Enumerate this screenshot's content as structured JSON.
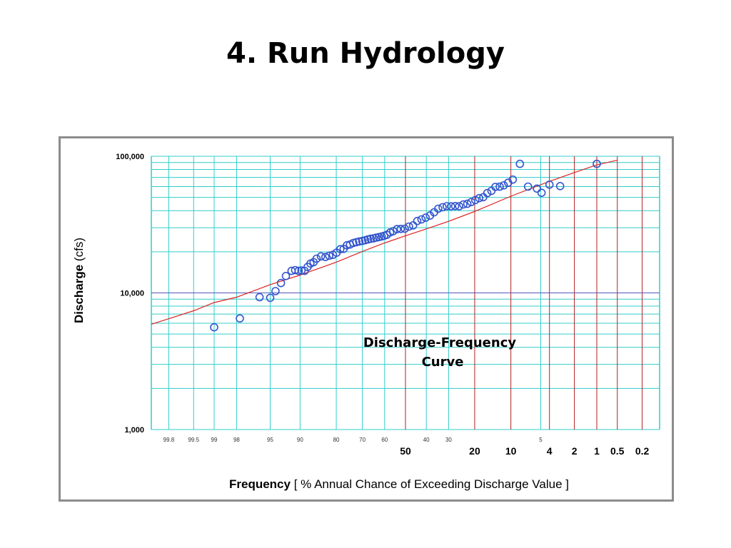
{
  "slide": {
    "title": "4. Run Hydrology"
  },
  "chart_data": {
    "type": "scatter",
    "xlabel_bold": "Frequency",
    "xlabel_rest": "[ % Annual Chance of Exceeding Discharge Value ]",
    "ylabel_bold": "Discharge",
    "ylabel_rest": "(cfs)",
    "y_scale": "log",
    "ylim": [
      1000,
      100000
    ],
    "y_ticks": [
      "100,000",
      "10,000",
      "1,000"
    ],
    "x_axis": "probability (percent annual chance exceedance), decreasing left to right",
    "xlim": [
      99.9,
      0.1
    ],
    "x_ticks_minor": [
      "99.8",
      "99.5",
      "99",
      "98",
      "95",
      "90",
      "80",
      "70",
      "60",
      "40",
      "30",
      "5"
    ],
    "x_ticks_major": [
      "50",
      "20",
      "10",
      "4",
      "2",
      "1",
      "0.5",
      "0.2"
    ],
    "annotation": [
      "Discharge-Frequency",
      "Curve"
    ],
    "grid": true,
    "colors": {
      "grid": "#33cccc",
      "major_lines": "#b22222",
      "ref_line": "#5555bb",
      "points": "#3355cc",
      "curve": "#dd2222",
      "frame": "#8c8c8c"
    },
    "series": [
      {
        "kind": "points",
        "x": [
          99.0,
          97.8,
          96.2,
          95.0,
          94.3,
          93.5,
          92.7,
          91.7,
          91.0,
          90.3,
          89.7,
          89.0,
          88.3,
          87.6,
          86.8,
          86.0,
          84.8,
          83.5,
          82.3,
          81.1,
          79.9,
          78.6,
          77.4,
          76.2,
          75.0,
          73.7,
          72.5,
          71.3,
          70.0,
          68.8,
          67.6,
          66.4,
          65.1,
          63.9,
          62.7,
          61.4,
          60.2,
          59.0,
          57.4,
          55.9,
          54.1,
          52.3,
          50.3,
          48.3,
          46.3,
          44.3,
          42.3,
          40.3,
          38.3,
          36.4,
          34.5,
          32.6,
          30.8,
          29.0,
          27.3,
          25.7,
          24.1,
          22.6,
          21.2,
          19.8,
          18.5,
          17.2,
          16.0,
          14.8,
          13.7,
          12.6,
          11.6,
          10.6,
          9.6,
          8.2,
          6.8,
          5.5,
          4.9,
          4.0,
          3.0,
          1.0
        ],
        "y": [
          5600,
          6500,
          9300,
          9200,
          10300,
          11800,
          13300,
          14500,
          14700,
          14500,
          14600,
          14500,
          15500,
          16400,
          16800,
          17800,
          18500,
          18300,
          18700,
          19000,
          19700,
          20900,
          21000,
          22300,
          22600,
          23200,
          23500,
          23800,
          24000,
          24300,
          24600,
          24900,
          25100,
          25400,
          25600,
          25900,
          26200,
          26600,
          27700,
          28300,
          29300,
          29400,
          29500,
          30600,
          31200,
          33600,
          34500,
          35500,
          36800,
          38900,
          41300,
          42400,
          43100,
          43000,
          43200,
          43100,
          44400,
          44900,
          46200,
          47800,
          49400,
          50200,
          53800,
          55800,
          59700,
          59900,
          61200,
          64000,
          67500,
          88000,
          60000,
          58000,
          54000,
          62000,
          60500,
          88000
        ]
      },
      {
        "kind": "fitted_curve",
        "x": [
          99.9,
          99.5,
          99.0,
          98.0,
          95.0,
          90.0,
          80.0,
          70.0,
          60.0,
          50.0,
          40.0,
          30.0,
          20.0,
          10.0,
          4.0,
          2.0,
          1.0,
          0.5
        ],
        "y": [
          5900,
          7400,
          8500,
          9300,
          11500,
          13500,
          16800,
          20100,
          23200,
          26200,
          29400,
          33400,
          39500,
          51000,
          65500,
          76000,
          86500,
          93500
        ]
      }
    ]
  }
}
